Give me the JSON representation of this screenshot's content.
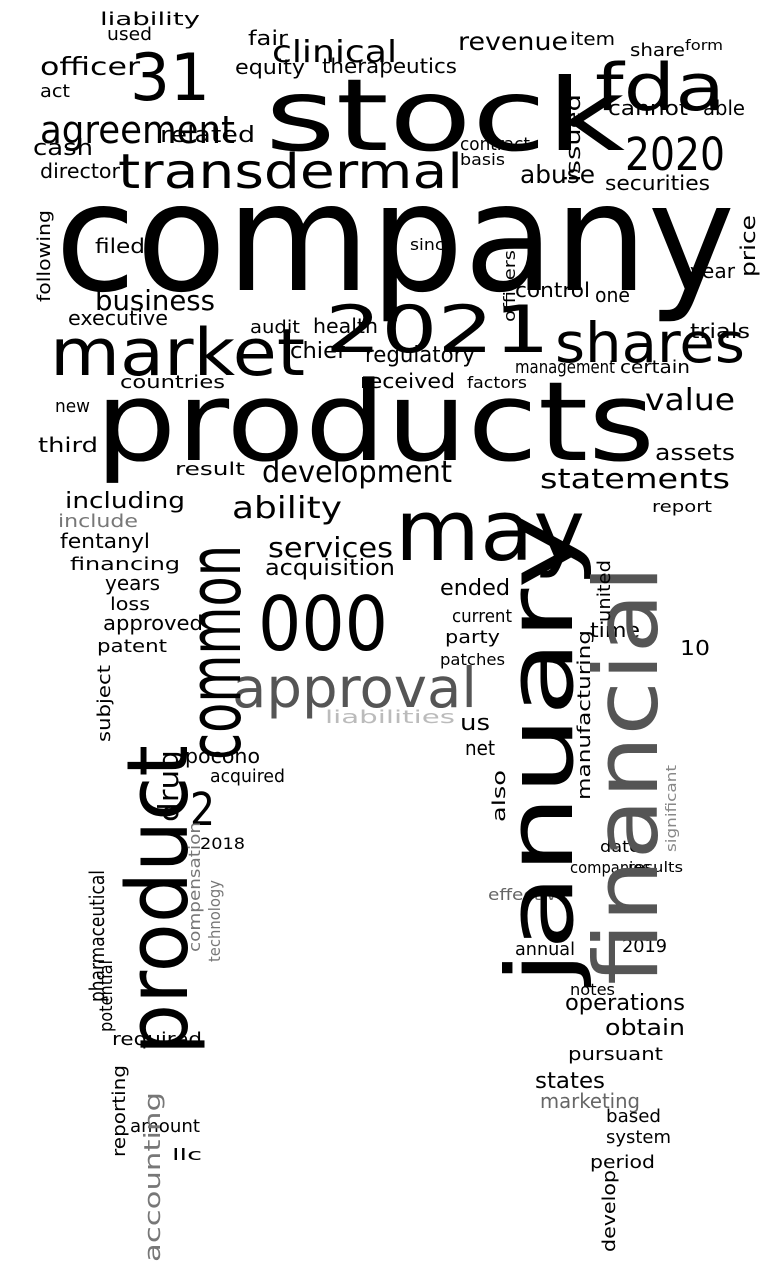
{
  "words": [
    "company",
    "products",
    "stock",
    "market",
    "2021",
    "shares",
    "transdermal",
    "2020",
    "fda",
    "31",
    "may",
    "000",
    "approval",
    "agreement",
    "clinical",
    "officer",
    "business",
    "development",
    "ability",
    "services",
    "statements",
    "value",
    "revenue",
    "abuse",
    "cash",
    "director",
    "related",
    "fair",
    "equity",
    "therapeutics",
    "cannot",
    "able",
    "securities",
    "year",
    "control",
    "trials",
    "executive",
    "audit",
    "health",
    "chief",
    "regulatory",
    "management",
    "certain",
    "received",
    "countries",
    "factors",
    "assets",
    "new",
    "third",
    "result",
    "including",
    "include",
    "fentanyl",
    "financing",
    "acquisition",
    "ended",
    "years",
    "loss",
    "approved",
    "patent",
    "party",
    "time",
    "10",
    "current",
    "patches",
    "us",
    "net",
    "pocono",
    "acquired",
    "2",
    "2018",
    "obtain",
    "operations",
    "pursuant",
    "states",
    "marketing",
    "based",
    "system",
    "period",
    "required",
    "amount",
    "llc",
    "annual",
    "2019",
    "notes",
    "companies",
    "effective",
    "results",
    "date",
    "report",
    "one",
    "item",
    "share",
    "form",
    "used",
    "liability",
    "act",
    "filed",
    "since",
    "basis",
    "contract",
    "product",
    "common",
    "january",
    "financial",
    "manufacturing",
    "accounting",
    "develop",
    "drug",
    "compensation",
    "technology",
    "pharmaceutical",
    "reporting",
    "issued",
    "following",
    "price",
    "also",
    "subject",
    "potential",
    "united",
    "significant",
    "officers",
    "liabilities"
  ]
}
